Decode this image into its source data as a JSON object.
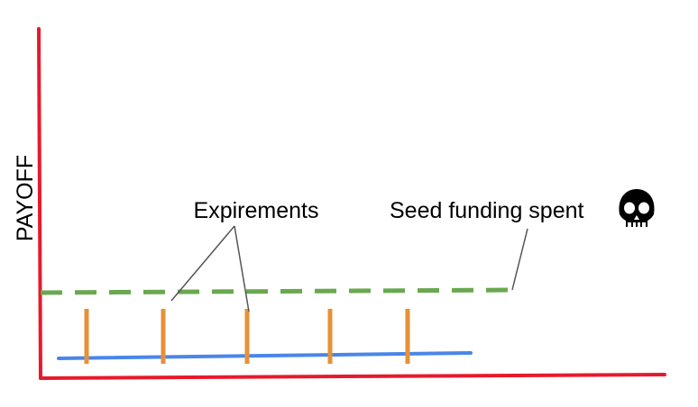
{
  "diagram": {
    "y_axis_label": "PAYOFF",
    "experiments_label": "Expirements",
    "seed_label": "Seed funding spent",
    "skull_icon": "skull-icon"
  },
  "colors": {
    "axes": "#e8192c",
    "threshold": "#6aa84f",
    "baseline": "#4a86e8",
    "experiment": "#e69138",
    "callout": "#555555",
    "text": "#000000"
  },
  "experiments": {
    "count": 5
  }
}
